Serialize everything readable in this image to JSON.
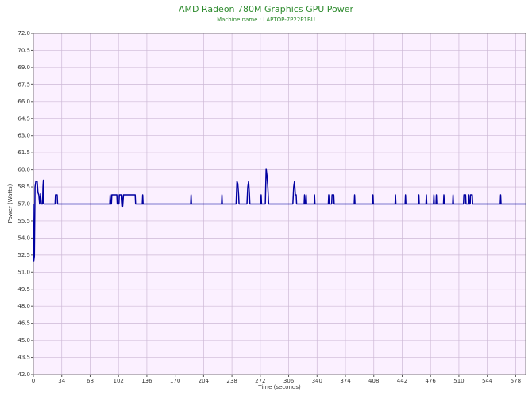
{
  "chart_data": {
    "type": "line",
    "title": "AMD Radeon 780M Graphics GPU Power",
    "subtitle": "Machine name : LAPTOP-7P22P1BU",
    "x_label": "Time (seconds)",
    "y_label": "Power (Watts)",
    "xlim": [
      0,
      590
    ],
    "ylim": [
      42,
      72
    ],
    "xticks": [
      0,
      34,
      68,
      102,
      136,
      170,
      204,
      238,
      272,
      306,
      340,
      374,
      408,
      442,
      476,
      510,
      544,
      578
    ],
    "yticks": [
      {
        "value": 42,
        "label": "42.0"
      },
      43.5,
      {
        "value": 45,
        "label": "45.0"
      },
      46.5,
      {
        "value": 48,
        "label": "48.0"
      },
      49.5,
      {
        "value": 51,
        "label": "51.0"
      },
      52.5,
      {
        "value": 54,
        "label": "54.0"
      },
      55.5,
      {
        "value": 57,
        "label": "57.0"
      },
      58.5,
      {
        "value": 60,
        "label": "60.0"
      },
      61.5,
      {
        "value": 63,
        "label": "63.0"
      },
      64.5,
      {
        "value": 66,
        "label": "66.0"
      },
      67.5,
      {
        "value": 69,
        "label": "69.0"
      },
      70.5,
      {
        "value": 72,
        "label": "72.0"
      }
    ],
    "grid": true,
    "x": [
      0,
      0.5,
      1.2,
      2,
      3,
      4.5,
      5.5,
      6.5,
      7.5,
      8.5,
      9.5,
      11,
      11.5,
      12,
      12.5,
      26,
      26.5,
      28.5,
      29,
      91.5,
      92,
      92.5,
      93.5,
      94,
      100,
      100.5,
      102.5,
      103,
      106,
      107,
      108,
      109,
      122,
      122.5,
      130.5,
      131,
      131.5,
      188.5,
      189,
      189.5,
      225.5,
      226,
      226.5,
      243,
      244,
      245,
      246,
      246.5,
      256,
      257,
      258,
      259,
      259.5,
      272.5,
      273,
      273.5,
      278,
      279,
      280,
      281,
      282,
      311,
      312,
      313,
      314,
      315,
      315.5,
      324.5,
      325,
      325.5,
      326.5,
      327,
      327.5,
      336.5,
      337,
      337.5,
      353.5,
      354,
      354.5,
      357.5,
      358,
      360,
      360.5,
      384.5,
      385,
      385.5,
      406.5,
      407,
      407.5,
      433.5,
      434,
      434.5,
      445.5,
      446,
      446.5,
      461.5,
      462,
      462.5,
      470.5,
      471,
      471.5,
      479.5,
      480,
      480.5,
      482.5,
      483,
      483.5,
      491.5,
      492,
      492.5,
      502.5,
      503,
      503.5,
      515.5,
      516,
      518,
      518.5,
      521.5,
      522,
      522.5,
      523.5,
      524,
      526,
      526.5,
      559.5,
      560,
      560.5,
      590
    ],
    "series": [
      {
        "color": "#0000a0",
        "values": [
          57,
          52,
          52.4,
          58.5,
          59,
          59,
          58,
          57.8,
          57,
          57.9,
          57,
          57,
          58.5,
          59.1,
          57,
          57,
          57.8,
          57.8,
          57,
          57,
          57.8,
          57,
          57,
          57.8,
          57.8,
          57,
          57,
          57.8,
          57.8,
          56.8,
          57.8,
          57.8,
          57.8,
          57,
          57,
          57.8,
          57,
          57,
          57.8,
          57,
          57,
          57.8,
          57,
          57,
          59,
          58.8,
          57.8,
          57,
          57,
          58.5,
          59,
          57.8,
          57,
          57,
          57.8,
          57,
          57,
          60.1,
          59.5,
          58.5,
          57,
          57,
          58.5,
          59,
          57.8,
          57.8,
          57,
          57,
          57.8,
          57,
          57,
          57.8,
          57,
          57,
          57.8,
          57,
          57,
          57.8,
          57,
          57,
          57.8,
          57.8,
          57,
          57,
          57.8,
          57,
          57,
          57.8,
          57,
          57,
          57.8,
          57,
          57,
          57.8,
          57,
          57,
          57.8,
          57,
          57,
          57.8,
          57,
          57,
          57.8,
          57,
          57,
          57.8,
          57,
          57,
          57.8,
          57,
          57,
          57.8,
          57,
          57,
          57.8,
          57.8,
          57,
          57,
          57.8,
          57,
          57,
          57.8,
          57.8,
          57,
          57,
          57.8,
          57,
          57
        ]
      }
    ]
  }
}
